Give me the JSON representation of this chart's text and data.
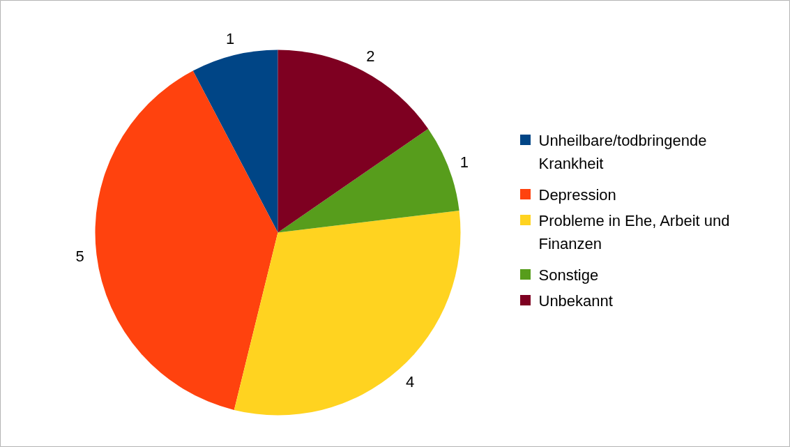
{
  "chart_data": {
    "type": "pie",
    "categories": [
      "Unheilbare/todbringende Krankheit",
      "Depression",
      "Probleme in Ehe, Arbeit und Finanzen",
      "Sonstige",
      "Unbekannt"
    ],
    "values": [
      1,
      5,
      4,
      1,
      2
    ],
    "colors": [
      "#004586",
      "#ff420e",
      "#ffd320",
      "#579d1c",
      "#7e0021"
    ],
    "data_labels": true,
    "legend": "right"
  }
}
